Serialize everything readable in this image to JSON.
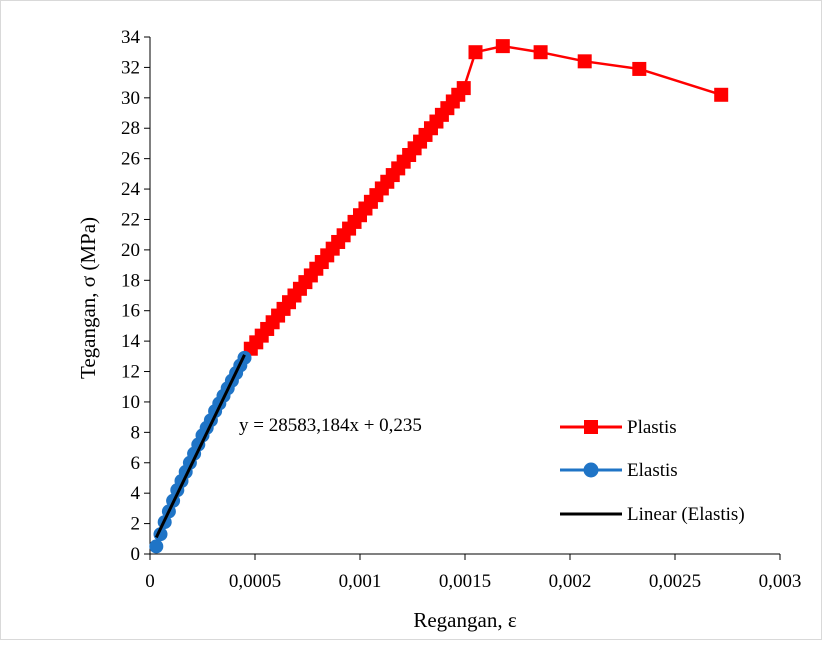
{
  "chart_data": {
    "type": "scatter",
    "title": "",
    "xlabel": "Regangan, ε",
    "ylabel": "Tegangan, σ (MPa)",
    "xlim": [
      0,
      0.003
    ],
    "ylim": [
      0,
      34
    ],
    "x_ticks": [
      0,
      0.0005,
      0.001,
      0.0015,
      0.002,
      0.0025,
      0.003
    ],
    "x_tick_labels": [
      "0",
      "0,0005",
      "0,001",
      "0,0015",
      "0,002",
      "0,0025",
      "0,003"
    ],
    "y_ticks": [
      0,
      2,
      4,
      6,
      8,
      10,
      12,
      14,
      16,
      18,
      20,
      22,
      24,
      26,
      28,
      30,
      32,
      34
    ],
    "y_tick_labels": [
      "0",
      "2",
      "4",
      "6",
      "8",
      "10",
      "12",
      "14",
      "16",
      "18",
      "20",
      "22",
      "24",
      "26",
      "28",
      "30",
      "32",
      "34"
    ],
    "grid": false,
    "legend_position": "bottom-right",
    "series": [
      {
        "name": "Plastis",
        "color": "#ff0000",
        "marker": "square",
        "x": [
          0.00048,
          0.000506,
          0.000532,
          0.000558,
          0.000584,
          0.00061,
          0.000636,
          0.000662,
          0.000688,
          0.000714,
          0.00074,
          0.000766,
          0.000792,
          0.000818,
          0.000844,
          0.00087,
          0.000896,
          0.000922,
          0.000948,
          0.000974,
          0.001,
          0.001026,
          0.001052,
          0.001078,
          0.001104,
          0.00113,
          0.001156,
          0.001182,
          0.001208,
          0.001234,
          0.00126,
          0.001286,
          0.001312,
          0.001338,
          0.001364,
          0.00139,
          0.001416,
          0.001442,
          0.001468,
          0.001494,
          0.00155,
          0.00168,
          0.00186,
          0.00207,
          0.00233,
          0.00272
        ],
        "y": [
          13.5,
          13.92,
          14.36,
          14.8,
          15.24,
          15.68,
          16.12,
          16.56,
          17.0,
          17.44,
          17.88,
          18.32,
          18.76,
          19.2,
          19.64,
          20.08,
          20.52,
          20.96,
          21.4,
          21.84,
          22.28,
          22.72,
          23.16,
          23.6,
          24.04,
          24.48,
          24.92,
          25.36,
          25.8,
          26.24,
          26.68,
          27.12,
          27.56,
          28.0,
          28.44,
          28.88,
          29.32,
          29.76,
          30.2,
          30.64,
          33.0,
          33.4,
          33.0,
          32.4,
          31.9,
          30.2
        ]
      },
      {
        "name": "Elastis",
        "color": "#1f74c6",
        "marker": "circle",
        "x": [
          3e-05,
          5e-05,
          7e-05,
          9e-05,
          0.00011,
          0.00013,
          0.00015,
          0.00017,
          0.00019,
          0.00021,
          0.00023,
          0.00025,
          0.00027,
          0.00029,
          0.00031,
          0.00033,
          0.00035,
          0.00037,
          0.00039,
          0.00041,
          0.00043,
          0.00045
        ],
        "y": [
          0.5,
          1.3,
          2.1,
          2.8,
          3.5,
          4.2,
          4.8,
          5.4,
          6.0,
          6.6,
          7.2,
          7.8,
          8.3,
          8.8,
          9.4,
          9.9,
          10.4,
          10.9,
          11.4,
          11.9,
          12.4,
          12.9
        ]
      },
      {
        "name": "Linear (Elastis)",
        "color": "#000000",
        "type": "line",
        "x": [
          3e-05,
          0.00045
        ],
        "y": [
          1.09,
          13.1
        ]
      }
    ],
    "annotations": [
      {
        "text": "y = 28583,184x + 0,235"
      }
    ]
  }
}
